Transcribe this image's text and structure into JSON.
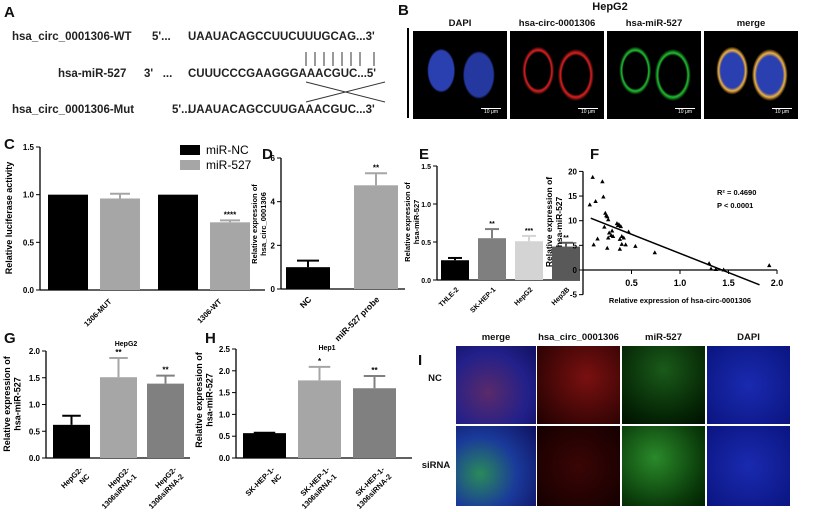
{
  "panels": {
    "A": "A",
    "B": "B",
    "C": "C",
    "D": "D",
    "E": "E",
    "F": "F",
    "G": "G",
    "H": "H",
    "I": "I"
  },
  "panel_a": {
    "rows": [
      {
        "name": "hsa_circ_0001306-WT",
        "end5": "5'...",
        "seq": "UAAUACAGCCUUCUUUGCAG...3'"
      },
      {
        "name": "hsa-miR-527",
        "end5": "3'   ...",
        "seq": "CUUUCCCGAAGGGAAACGUC...5'"
      },
      {
        "name": "hsa_circ_0001306-Mut",
        "end5": "5'...",
        "seq": "UAAUACAGCCUUGAAACGUC...3'"
      }
    ]
  },
  "panel_b": {
    "title": "HepG2",
    "columns": [
      "DAPI",
      "hsa-circ-0001306",
      "hsa-miR-527",
      "merge"
    ],
    "scale_bar": "10 μm"
  },
  "panel_i": {
    "columns": [
      "merge",
      "hsa_circ_0001306",
      "miR-527",
      "DAPI"
    ],
    "rows": [
      "NC",
      "siRNA"
    ]
  },
  "chart_data": [
    {
      "id": "C",
      "type": "bar",
      "ylabel": "Relative luciferase activity",
      "ylim": [
        0,
        1.5
      ],
      "yticks": [
        "0.0",
        "0.5",
        "1.0",
        "1.5"
      ],
      "categories": [
        "1306-MUT",
        "1306-WT"
      ],
      "legend": "top-right",
      "series": [
        {
          "name": "miR-NC",
          "color": "#000000",
          "values": [
            1.0,
            1.0
          ],
          "errors": [
            0,
            0
          ],
          "sig": [
            "",
            ""
          ]
        },
        {
          "name": "miR-527",
          "color": "#a6a6a6",
          "values": [
            0.96,
            0.71
          ],
          "errors": [
            0.05,
            0.02
          ],
          "sig": [
            "",
            "****"
          ]
        }
      ]
    },
    {
      "id": "D",
      "type": "bar",
      "ylabel": [
        "Relative expression of",
        "hsa_circ_0001306"
      ],
      "ylim": [
        0,
        6
      ],
      "yticks": [
        "0",
        "2",
        "4",
        "6"
      ],
      "categories": [
        "NC",
        "miR-527 probe"
      ],
      "values": [
        1.0,
        4.75
      ],
      "errors": [
        0.3,
        0.55
      ],
      "colors": [
        "#000000",
        "#a6a6a6"
      ],
      "sig": [
        "",
        "**"
      ]
    },
    {
      "id": "E",
      "type": "bar",
      "ylabel": [
        "Relative expression of",
        "hsa-miR-527"
      ],
      "ylim": [
        0,
        1.5
      ],
      "yticks": [
        "0.0",
        "0.5",
        "1.0",
        "1.5"
      ],
      "categories": [
        "THLE-2",
        "SK-HEP-1",
        "HepG2",
        "Hep3B"
      ],
      "values": [
        0.26,
        0.55,
        0.51,
        0.44
      ],
      "errors": [
        0.03,
        0.12,
        0.07,
        0.05
      ],
      "colors": [
        "#000000",
        "#7f7f7f",
        "#d4d4d4",
        "#595959"
      ],
      "sig": [
        "",
        "**",
        "***",
        "**"
      ]
    },
    {
      "id": "F",
      "type": "scatter",
      "xlabel": "Relative expression of hsa-circ-0001306",
      "ylabel": [
        "Relative expression  of",
        "hsa-miR-527"
      ],
      "xlim": [
        0,
        2.0
      ],
      "ylim": [
        -5,
        20
      ],
      "xticks": [
        "0.5",
        "1.0",
        "1.5",
        "2.0"
      ],
      "yticks": [
        "-5",
        "0",
        "5",
        "10",
        "15",
        "20"
      ],
      "annotations": [
        "R² = 0.4690",
        "P < 0.0001"
      ],
      "regression": {
        "x": [
          0.08,
          1.82
        ],
        "y": [
          10.5,
          -3.0
        ]
      },
      "points": [
        [
          0.1,
          18.8
        ],
        [
          0.2,
          17.9
        ],
        [
          0.13,
          13.9
        ],
        [
          0.07,
          13.2
        ],
        [
          0.21,
          14.8
        ],
        [
          0.23,
          11.5
        ],
        [
          0.24,
          11.0
        ],
        [
          0.25,
          10.8
        ],
        [
          0.26,
          10.2
        ],
        [
          0.22,
          8.7
        ],
        [
          0.3,
          7.9
        ],
        [
          0.27,
          7.5
        ],
        [
          0.29,
          7.0
        ],
        [
          0.31,
          6.8
        ],
        [
          0.26,
          6.5
        ],
        [
          0.35,
          9.4
        ],
        [
          0.37,
          9.2
        ],
        [
          0.39,
          8.8
        ],
        [
          0.36,
          9.0
        ],
        [
          0.4,
          6.8
        ],
        [
          0.42,
          6.5
        ],
        [
          0.38,
          6.2
        ],
        [
          0.4,
          5.2
        ],
        [
          0.44,
          5.1
        ],
        [
          0.38,
          4.2
        ],
        [
          0.47,
          7.7
        ],
        [
          0.25,
          4.4
        ],
        [
          0.15,
          6.3
        ],
        [
          0.11,
          5.1
        ],
        [
          0.54,
          4.8
        ],
        [
          0.74,
          3.5
        ],
        [
          1.3,
          1.3
        ],
        [
          1.32,
          0.2
        ],
        [
          1.37,
          0.1
        ],
        [
          1.45,
          0.0
        ],
        [
          1.92,
          0.9
        ]
      ]
    },
    {
      "id": "G",
      "type": "bar",
      "title": "HepG2",
      "ylabel": [
        "Relative expression  of",
        "hsa-miR-527"
      ],
      "ylim": [
        0,
        2.0
      ],
      "yticks": [
        "0.0",
        "0.5",
        "1.0",
        "1.5",
        "2.0"
      ],
      "categories": [
        [
          "HepG2-",
          "NC"
        ],
        [
          "HepG2-",
          "1306siRNA-1"
        ],
        [
          "HepG2-",
          "1306siRNA-2"
        ]
      ],
      "values": [
        0.62,
        1.51,
        1.39
      ],
      "errors": [
        0.17,
        0.36,
        0.15
      ],
      "colors": [
        "#000000",
        "#a6a6a6",
        "#808080"
      ],
      "sig": [
        "",
        "**",
        "**"
      ]
    },
    {
      "id": "H",
      "type": "bar",
      "title": "Hep1",
      "ylabel": [
        "Relative expression of",
        "hsa-miR-527"
      ],
      "ylim": [
        0,
        2.5
      ],
      "yticks": [
        "0.0",
        "0.5",
        "1.0",
        "1.5",
        "2.0",
        "2.5"
      ],
      "categories": [
        [
          "SK-HEP-1-",
          "NC"
        ],
        [
          "SK-HEP-1-",
          "1306siRNA-1"
        ],
        [
          "SK-HEP-1-",
          "1306siRNA-2"
        ]
      ],
      "values": [
        0.57,
        1.78,
        1.6
      ],
      "errors": [
        0.01,
        0.31,
        0.28
      ],
      "colors": [
        "#000000",
        "#a6a6a6",
        "#808080"
      ],
      "sig": [
        "",
        "*",
        "**"
      ]
    }
  ]
}
